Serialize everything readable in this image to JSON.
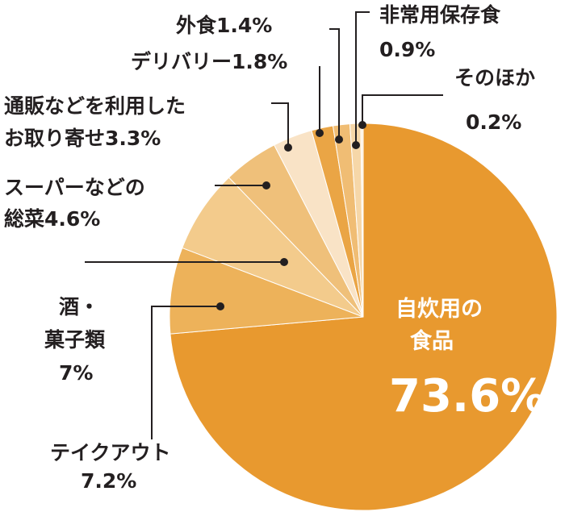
{
  "chart_data": {
    "type": "pie",
    "start": "top",
    "direction": "clockwise",
    "slices": [
      {
        "name": "自炊用の食品",
        "value": 73.6,
        "color": "#e8992f",
        "label": [
          "自炊用の",
          "食品"
        ],
        "value_label": "73.6%"
      },
      {
        "name": "テイクアウト",
        "value": 7.2,
        "color": "#edb25a",
        "label": [
          "テイクアウト",
          "7.2%"
        ]
      },
      {
        "name": "酒・菓子類",
        "value": 7.0,
        "color": "#f3cb8c",
        "label": [
          "酒・",
          "菓子類",
          "7%"
        ]
      },
      {
        "name": "スーパーなどの総菜",
        "value": 4.6,
        "color": "#efc07a",
        "label": [
          "スーパーなどの",
          "総菜4.6%"
        ]
      },
      {
        "name": "通販などを利用したお取り寄せ",
        "value": 3.3,
        "color": "#f9e3c6",
        "label": [
          "通販などを利用した",
          "お取り寄せ3.3%"
        ]
      },
      {
        "name": "デリバリー",
        "value": 1.8,
        "color": "#eaa545",
        "label": [
          "デリバリー1.8%"
        ]
      },
      {
        "name": "外食",
        "value": 1.4,
        "color": "#f0bd74",
        "label": [
          "外食1.4%"
        ]
      },
      {
        "name": "非常用保存食",
        "value": 0.9,
        "color": "#f6d7a8",
        "label": [
          "非常用保存食",
          "0.9%"
        ]
      },
      {
        "name": "そのほか",
        "value": 0.2,
        "color": "#fdf1e0",
        "label": [
          "そのほか",
          "0.2%"
        ]
      }
    ]
  }
}
